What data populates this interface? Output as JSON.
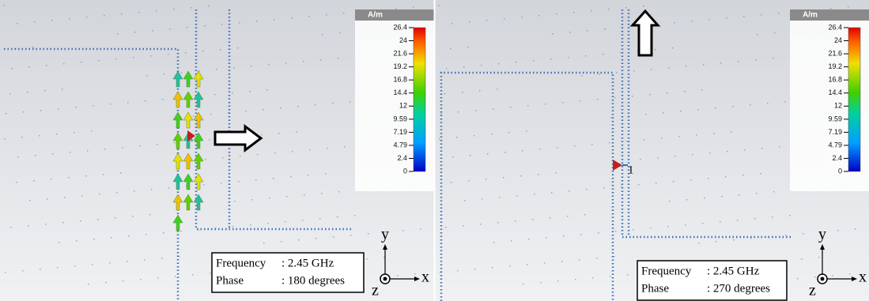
{
  "panels": [
    {
      "colorbar": {
        "unit": "A/m",
        "ticks": [
          26.4,
          24,
          21.6,
          19.2,
          16.8,
          14.4,
          12,
          9.59,
          7.19,
          4.79,
          2.4,
          0
        ]
      },
      "annotation": {
        "frequency_label": "Frequency",
        "frequency": ": 2.45 GHz",
        "phase_label": "Phase",
        "phase": ": 180 degrees"
      },
      "axes": {
        "y": "y",
        "x": "x",
        "z": "z"
      }
    },
    {
      "colorbar": {
        "unit": "A/m",
        "ticks": [
          26.4,
          24,
          21.6,
          19.2,
          16.8,
          14.4,
          12,
          9.59,
          7.19,
          4.79,
          2.4,
          0
        ]
      },
      "annotation": {
        "frequency_label": "Frequency",
        "frequency": ": 2.45 GHz",
        "phase_label": "Phase",
        "phase": ": 270 degrees"
      },
      "axes": {
        "y": "y",
        "x": "x",
        "z": "z"
      },
      "port_label": "1"
    }
  ]
}
